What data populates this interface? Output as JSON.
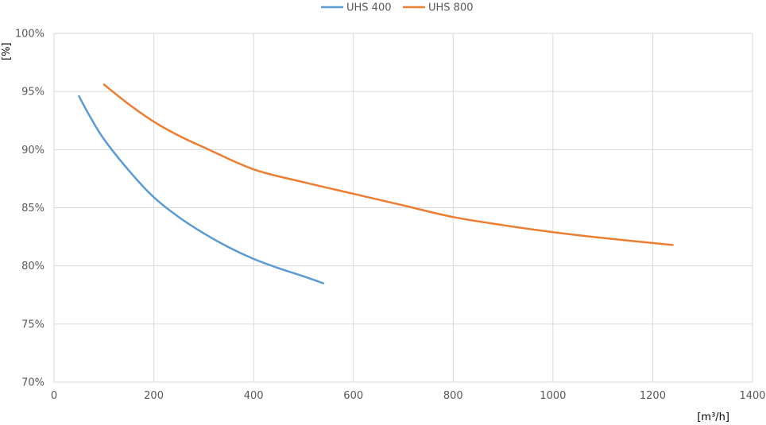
{
  "chart_data": {
    "type": "line",
    "title": "",
    "xlabel": "[m³/h]",
    "ylabel": "[%]",
    "xlim": [
      0,
      1400
    ],
    "ylim": [
      70,
      100
    ],
    "x_ticks": [
      0,
      200,
      400,
      600,
      800,
      1000,
      1200,
      1400
    ],
    "y_ticks": [
      70,
      75,
      80,
      85,
      90,
      95,
      100
    ],
    "x_tick_labels": [
      "0",
      "200",
      "400",
      "600",
      "800",
      "1000",
      "1200",
      "1400"
    ],
    "y_tick_labels": [
      "70%",
      "75%",
      "80%",
      "85%",
      "90%",
      "95%",
      "100%"
    ],
    "grid": true,
    "legend_position": "top",
    "series": [
      {
        "name": "UHS 400",
        "color": "#5b9bd5",
        "x": [
          50,
          70,
          100,
          150,
          200,
          250,
          300,
          350,
          400,
          450,
          500,
          540
        ],
        "y": [
          94.6,
          93.0,
          90.9,
          88.2,
          85.9,
          84.2,
          82.8,
          81.6,
          80.6,
          79.8,
          79.1,
          78.5
        ]
      },
      {
        "name": "UHS 800",
        "color": "#ed7d31",
        "x": [
          100,
          150,
          200,
          250,
          300,
          400,
          500,
          600,
          700,
          800,
          900,
          1000,
          1100,
          1240
        ],
        "y": [
          95.6,
          93.9,
          92.4,
          91.2,
          90.2,
          88.3,
          87.2,
          86.2,
          85.2,
          84.2,
          83.5,
          82.9,
          82.4,
          81.8
        ]
      }
    ]
  }
}
